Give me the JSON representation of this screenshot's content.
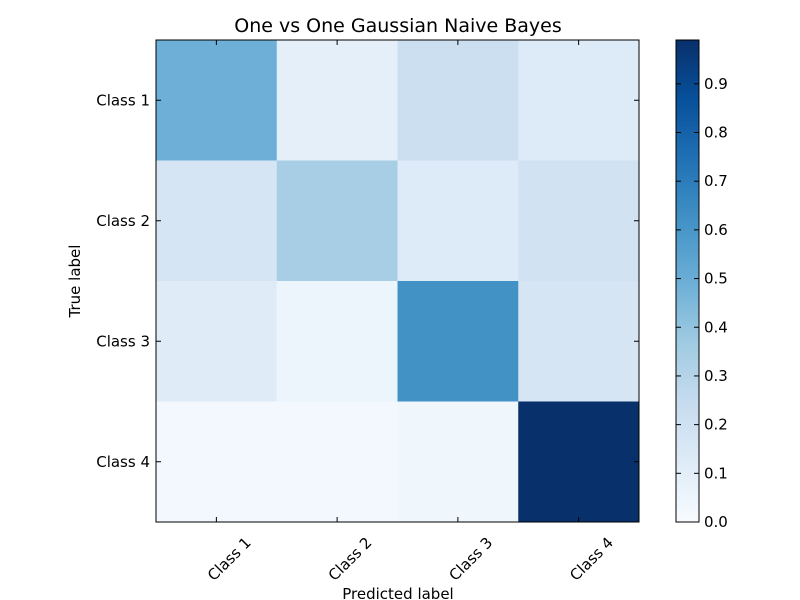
{
  "chart_data": {
    "type": "heatmap",
    "title": "One vs One Gaussian Naive Bayes",
    "xlabel": "Predicted label",
    "ylabel": "True label",
    "x_categories": [
      "Class 1",
      "Class 2",
      "Class 3",
      "Class 4"
    ],
    "y_categories": [
      "Class 1",
      "Class 2",
      "Class 3",
      "Class 4"
    ],
    "values": [
      [
        0.49,
        0.09,
        0.22,
        0.13
      ],
      [
        0.17,
        0.34,
        0.13,
        0.19
      ],
      [
        0.12,
        0.05,
        0.62,
        0.17
      ],
      [
        0.02,
        0.02,
        0.04,
        0.99
      ]
    ],
    "colorbar": {
      "range": [
        0,
        0.99
      ],
      "ticks": [
        0.0,
        0.1,
        0.2,
        0.3,
        0.4,
        0.5,
        0.6,
        0.7,
        0.8,
        0.9
      ],
      "tick_labels": [
        "0.0",
        "0.1",
        "0.2",
        "0.3",
        "0.4",
        "0.5",
        "0.6",
        "0.7",
        "0.8",
        "0.9"
      ],
      "colormap": "Blues",
      "colors": [
        "#f7fbff",
        "#deebf7",
        "#c6dbef",
        "#9ecae1",
        "#6baed6",
        "#4292c6",
        "#2171b5",
        "#08519c",
        "#08306b"
      ]
    },
    "grid": false
  }
}
